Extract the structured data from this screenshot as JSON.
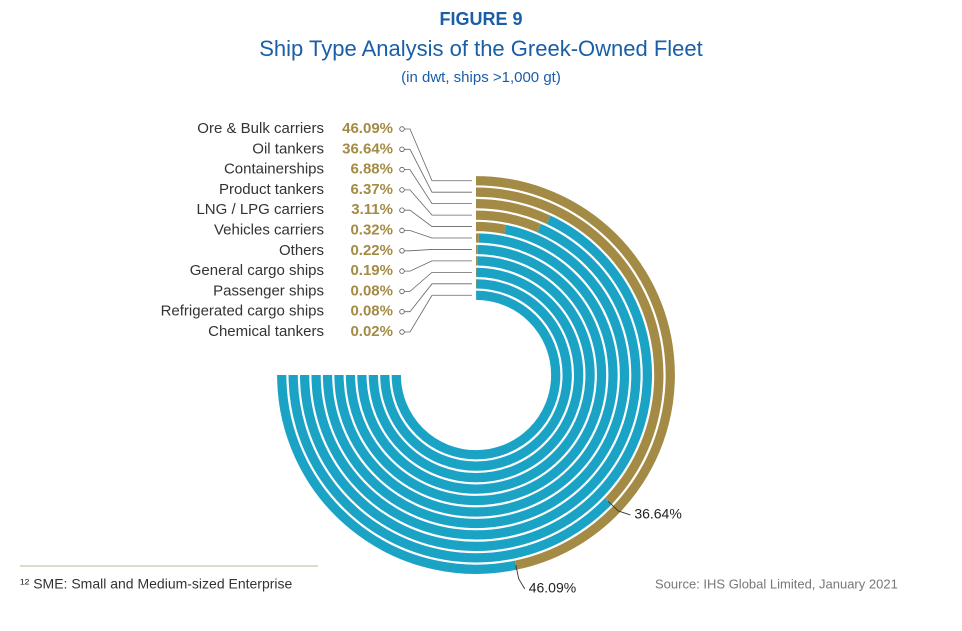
{
  "title": "FIGURE 9",
  "subtitle": "Ship Type Analysis of the Greek-Owned Fleet",
  "note": "(in dwt, ships >1,000 gt)",
  "footnote": "¹² SME: Small and Medium-sized Enterprise",
  "source": "Source: IHS Global Limited, January 2021",
  "chart_data": {
    "type": "radial-bar",
    "categories": [
      "Ore & Bulk carriers",
      "Oil tankers",
      "Containerships",
      "Product tankers",
      "LNG / LPG carriers",
      "Vehicles carriers",
      "Others",
      "General cargo ships",
      "Passenger ships",
      "Refrigerated cargo ships",
      "Chemical tankers"
    ],
    "values": [
      46.09,
      36.64,
      6.88,
      6.37,
      3.11,
      0.32,
      0.22,
      0.19,
      0.08,
      0.08,
      0.02
    ],
    "value_labels": [
      "46.09%",
      "36.64%",
      "6.88%",
      "6.37%",
      "3.11%",
      "0.32%",
      "0.22%",
      "0.19%",
      "0.08%",
      "0.08%",
      "0.02%"
    ],
    "rlim": [
      0,
      74
    ],
    "color": "#a38b46",
    "track_color": "#1ba3c6"
  }
}
